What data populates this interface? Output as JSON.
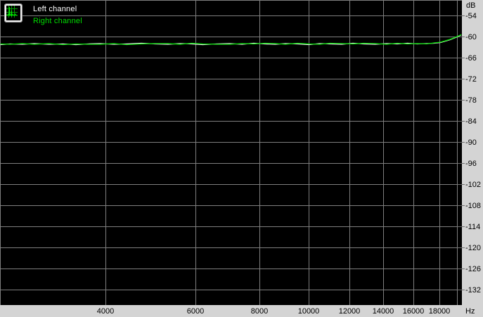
{
  "legend": {
    "items": [
      {
        "label": "Left channel",
        "color": "#ffffff"
      },
      {
        "label": "Right channel",
        "color": "#00dd00"
      }
    ],
    "icon": "spectrum-analyzer-icon"
  },
  "axes": {
    "y": {
      "unit": "dB",
      "ticks": [
        -54,
        -60,
        -66,
        -72,
        -78,
        -84,
        -90,
        -96,
        -102,
        -108,
        -114,
        -120,
        -126,
        -132
      ]
    },
    "x": {
      "unit": "Hz",
      "ticks": [
        4000,
        6000,
        8000,
        10000,
        12000,
        14000,
        16000,
        18000
      ]
    }
  },
  "colors": {
    "plot_background": "#000000",
    "grid": "#7f7f7f",
    "panel": "#d4d4d4",
    "label_text": "#000000",
    "left_channel": "#ffffff",
    "right_channel": "#00dd00"
  },
  "chart_data": {
    "type": "line",
    "title": "",
    "xlabel": "Hz",
    "ylabel": "dB",
    "x_scale": "log",
    "xlim": [
      2490,
      20000
    ],
    "ylim": [
      -136.4,
      -49.6
    ],
    "grid": true,
    "legend_position": "top-left",
    "x_ticks": [
      4000,
      6000,
      8000,
      10000,
      12000,
      14000,
      16000,
      18000
    ],
    "y_ticks": [
      -54,
      -60,
      -66,
      -72,
      -78,
      -84,
      -90,
      -96,
      -102,
      -108,
      -114,
      -120,
      -126,
      -132
    ],
    "x": [
      2490,
      2600,
      2750,
      2900,
      3100,
      3300,
      3500,
      3700,
      3900,
      4150,
      4400,
      4700,
      5000,
      5300,
      5600,
      5900,
      6200,
      6600,
      7000,
      7400,
      7800,
      8200,
      8600,
      9000,
      9500,
      10000,
      10500,
      11000,
      11600,
      12200,
      12800,
      13500,
      14200,
      14900,
      15600,
      16300,
      17000,
      17600,
      18100,
      18500,
      18900,
      19200,
      19500,
      19800,
      20000
    ],
    "series": [
      {
        "name": "Left channel",
        "color": "#ffffff",
        "values": [
          -62.3,
          -62.1,
          -62.2,
          -62.0,
          -62.2,
          -62.1,
          -62.3,
          -62.1,
          -62.0,
          -62.2,
          -62.1,
          -61.9,
          -62.1,
          -62.2,
          -62.0,
          -62.1,
          -62.3,
          -62.1,
          -62.0,
          -62.2,
          -61.9,
          -62.1,
          -62.2,
          -62.0,
          -62.1,
          -62.3,
          -62.0,
          -62.1,
          -62.2,
          -61.9,
          -62.1,
          -62.2,
          -62.0,
          -62.1,
          -61.9,
          -62.1,
          -62.0,
          -61.9,
          -61.7,
          -61.3,
          -60.9,
          -60.5,
          -60.1,
          -59.7,
          -59.5
        ]
      },
      {
        "name": "Right channel",
        "color": "#00dd00",
        "values": [
          -62.1,
          -62.2,
          -62.0,
          -62.2,
          -62.0,
          -62.3,
          -62.1,
          -62.2,
          -62.2,
          -62.0,
          -62.3,
          -62.1,
          -62.0,
          -62.0,
          -62.2,
          -61.9,
          -62.1,
          -62.2,
          -62.2,
          -62.0,
          -62.1,
          -61.9,
          -62.0,
          -62.2,
          -61.9,
          -62.1,
          -62.2,
          -61.9,
          -62.0,
          -62.1,
          -61.9,
          -62.0,
          -62.2,
          -61.9,
          -62.1,
          -62.0,
          -62.1,
          -61.8,
          -61.6,
          -61.2,
          -60.8,
          -60.4,
          -60.0,
          -59.6,
          -59.4
        ]
      }
    ]
  }
}
